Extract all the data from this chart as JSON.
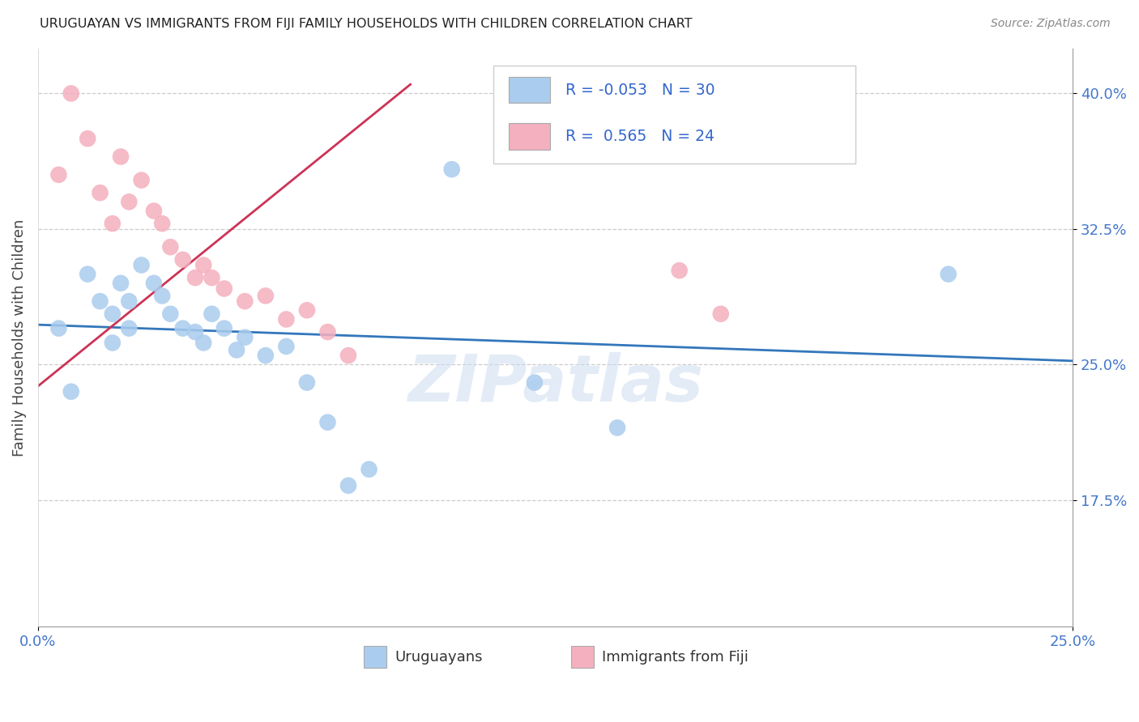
{
  "title": "URUGUAYAN VS IMMIGRANTS FROM FIJI FAMILY HOUSEHOLDS WITH CHILDREN CORRELATION CHART",
  "source": "Source: ZipAtlas.com",
  "ylabel": "Family Households with Children",
  "xmin": 0.0,
  "xmax": 0.25,
  "ymin": 0.105,
  "ymax": 0.425,
  "yticks": [
    0.175,
    0.25,
    0.325,
    0.4
  ],
  "ytick_labels": [
    "17.5%",
    "25.0%",
    "32.5%",
    "40.0%"
  ],
  "xticks": [
    0.0,
    0.25
  ],
  "xtick_labels": [
    "0.0%",
    "25.0%"
  ],
  "legend_labels": [
    "Uruguayans",
    "Immigrants from Fiji"
  ],
  "uruguayan_color": "#aaccee",
  "fiji_color": "#f4b0be",
  "uruguayan_line_color": "#3377bb",
  "fiji_line_color": "#cc3355",
  "R_uruguayan": -0.053,
  "N_uruguayan": 30,
  "R_fiji": 0.565,
  "N_fiji": 24,
  "watermark_text": "ZIPatlas",
  "uruguayan_x": [
    0.005,
    0.008,
    0.012,
    0.015,
    0.018,
    0.018,
    0.02,
    0.022,
    0.022,
    0.025,
    0.028,
    0.03,
    0.032,
    0.035,
    0.038,
    0.04,
    0.042,
    0.045,
    0.048,
    0.05,
    0.055,
    0.06,
    0.065,
    0.07,
    0.075,
    0.08,
    0.1,
    0.12,
    0.14,
    0.22
  ],
  "uruguayan_y": [
    0.27,
    0.235,
    0.3,
    0.285,
    0.278,
    0.262,
    0.295,
    0.285,
    0.27,
    0.305,
    0.295,
    0.288,
    0.278,
    0.27,
    0.268,
    0.262,
    0.278,
    0.27,
    0.258,
    0.265,
    0.255,
    0.26,
    0.24,
    0.218,
    0.183,
    0.192,
    0.358,
    0.24,
    0.215,
    0.3
  ],
  "fiji_x": [
    0.005,
    0.008,
    0.012,
    0.015,
    0.018,
    0.02,
    0.022,
    0.025,
    0.028,
    0.03,
    0.032,
    0.035,
    0.038,
    0.04,
    0.042,
    0.045,
    0.05,
    0.055,
    0.06,
    0.065,
    0.07,
    0.075,
    0.155,
    0.165
  ],
  "fiji_y": [
    0.355,
    0.4,
    0.375,
    0.345,
    0.328,
    0.365,
    0.34,
    0.352,
    0.335,
    0.328,
    0.315,
    0.308,
    0.298,
    0.305,
    0.298,
    0.292,
    0.285,
    0.288,
    0.275,
    0.28,
    0.268,
    0.255,
    0.302,
    0.278
  ],
  "uruguayan_trendline_x": [
    0.0,
    0.25
  ],
  "uruguayan_trendline_y": [
    0.272,
    0.252
  ],
  "fiji_trendline_x": [
    0.0,
    0.09
  ],
  "fiji_trendline_y": [
    0.238,
    0.405
  ]
}
